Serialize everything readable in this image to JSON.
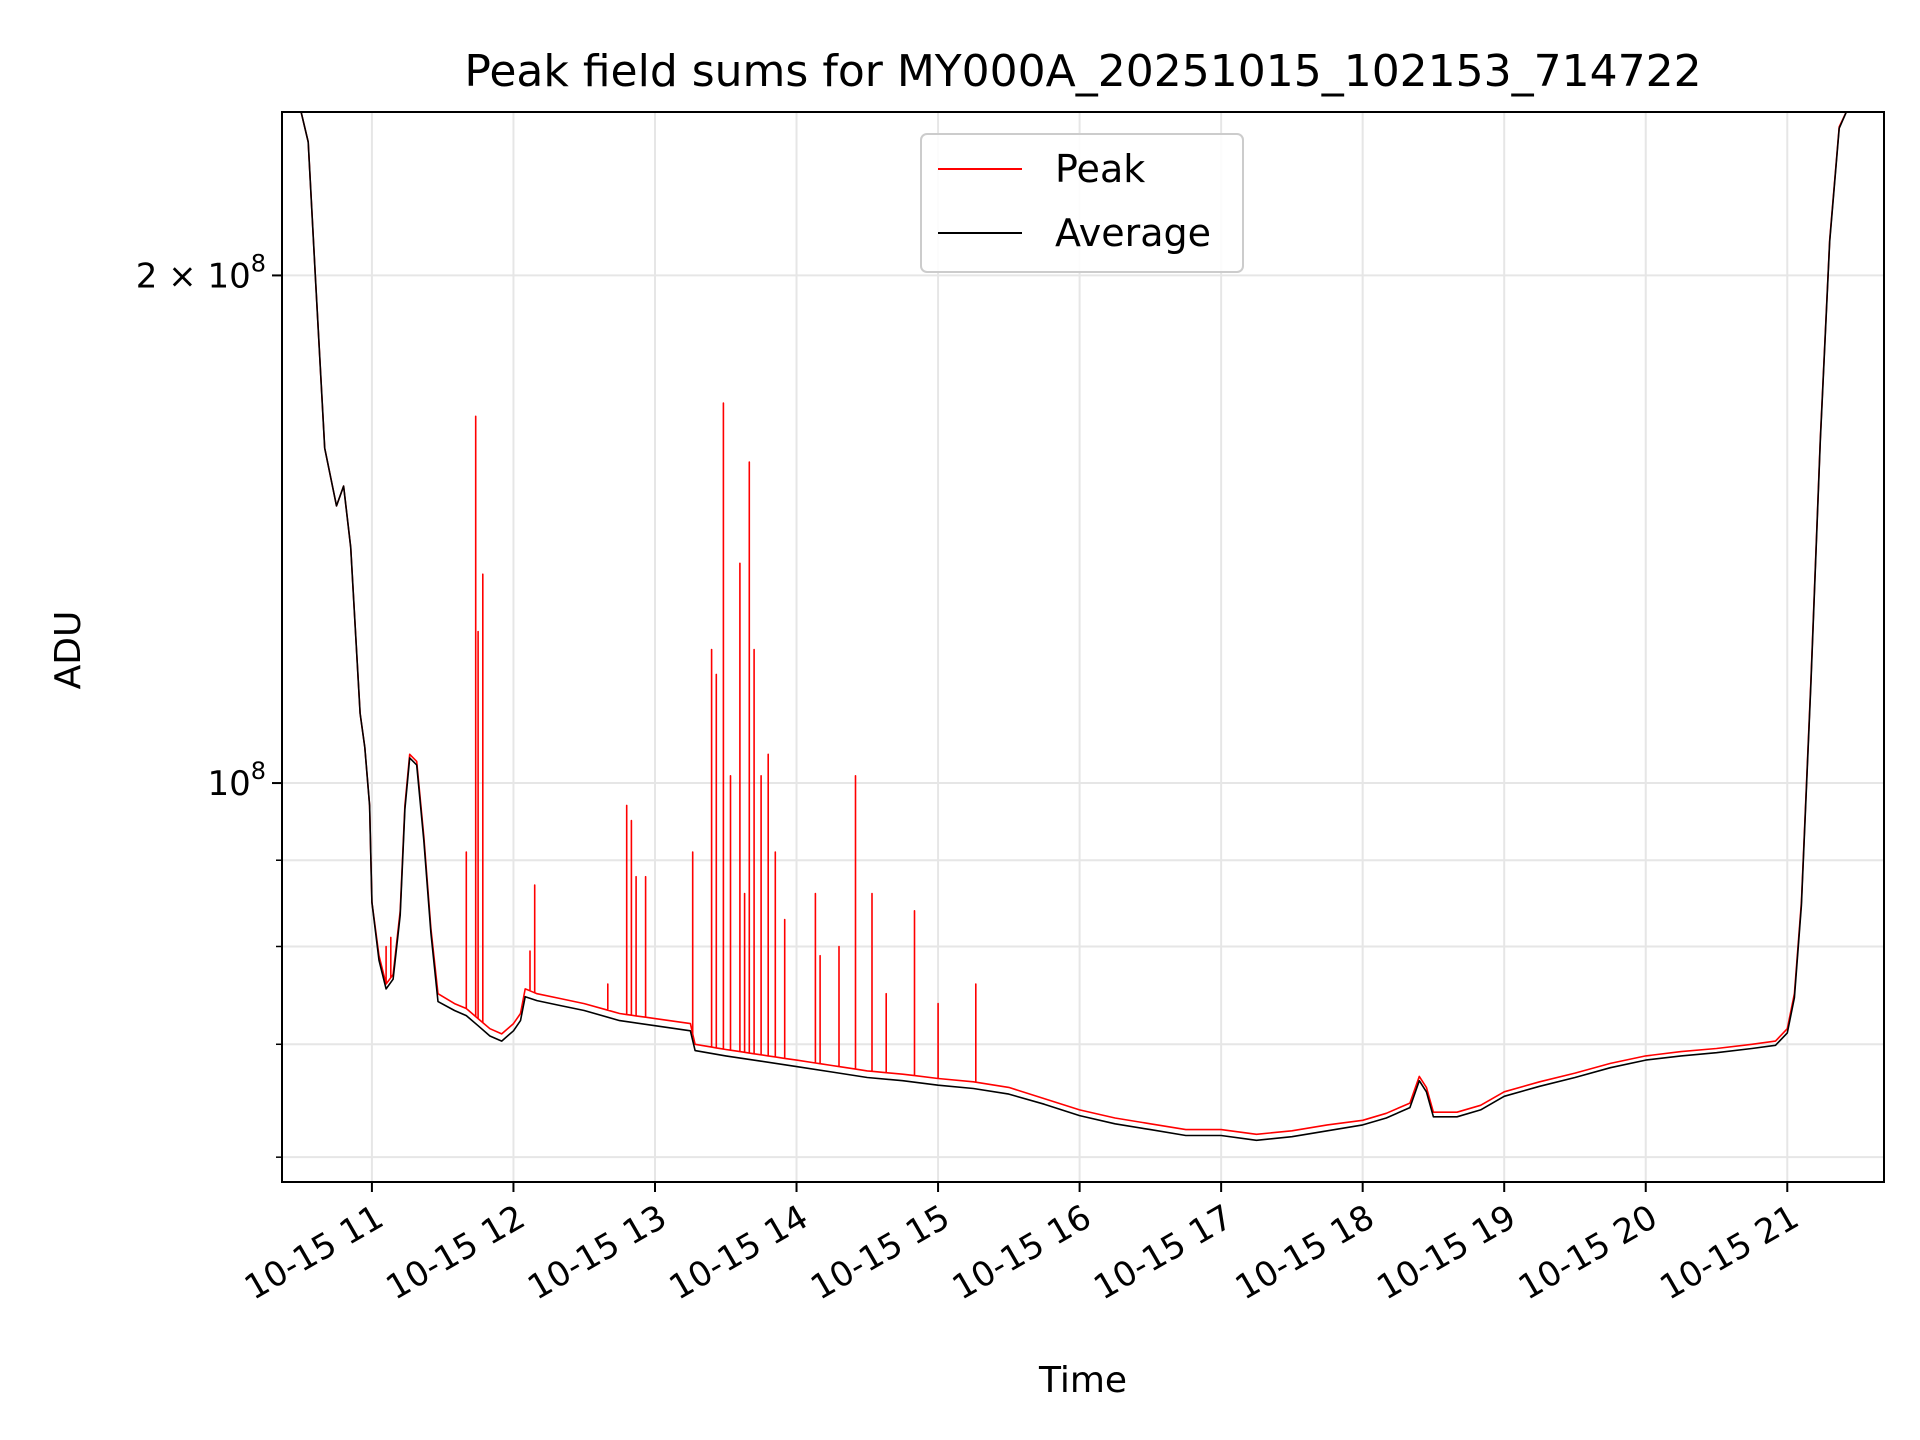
{
  "chart_data": {
    "type": "line",
    "title": "Peak field sums for MY000A_20251015_102153_714722",
    "xlabel": "Time",
    "ylabel": "ADU",
    "y_scale": "log",
    "xlim": [
      "2025-10-15 10:21:53",
      "2025-10-15 21:41:00"
    ],
    "ylim": [
      58000000,
      250000000
    ],
    "x_ticks": [
      {
        "time": "2025-10-15 11:00",
        "label": "10-15 11"
      },
      {
        "time": "2025-10-15 12:00",
        "label": "10-15 12"
      },
      {
        "time": "2025-10-15 13:00",
        "label": "10-15 13"
      },
      {
        "time": "2025-10-15 14:00",
        "label": "10-15 14"
      },
      {
        "time": "2025-10-15 15:00",
        "label": "10-15 15"
      },
      {
        "time": "2025-10-15 16:00",
        "label": "10-15 16"
      },
      {
        "time": "2025-10-15 17:00",
        "label": "10-15 17"
      },
      {
        "time": "2025-10-15 18:00",
        "label": "10-15 18"
      },
      {
        "time": "2025-10-15 19:00",
        "label": "10-15 19"
      },
      {
        "time": "2025-10-15 20:00",
        "label": "10-15 20"
      },
      {
        "time": "2025-10-15 21:00",
        "label": "10-15 21"
      }
    ],
    "y_major_ticks": [
      {
        "value": 100000000,
        "label_base": "10",
        "label_exp": "8"
      },
      {
        "value": 200000000,
        "label_base": "2 × 10",
        "label_exp": "8"
      }
    ],
    "y_minor_ticks": [
      60000000,
      70000000,
      80000000,
      90000000
    ],
    "grid": true,
    "legend_position": "upper center",
    "colors": {
      "peak": "#ff0000",
      "average": "#000000",
      "grid": "#e6e6e6"
    },
    "series": [
      {
        "name": "Peak",
        "color": "#ff0000",
        "points": [
          [
            "2025-10-15 10:21:53",
            250000000
          ],
          [
            "2025-10-15 10:30",
            250000000
          ],
          [
            "2025-10-15 10:33",
            240000000
          ],
          [
            "2025-10-15 10:36",
            200000000
          ],
          [
            "2025-10-15 10:40",
            158000000
          ],
          [
            "2025-10-15 10:45",
            146000000
          ],
          [
            "2025-10-15 10:48",
            150000000
          ],
          [
            "2025-10-15 10:51",
            138000000
          ],
          [
            "2025-10-15 10:55",
            110000000
          ],
          [
            "2025-10-15 10:57",
            105000000
          ],
          [
            "2025-10-15 10:59",
            97000000
          ],
          [
            "2025-10-15 11:00",
            85000000
          ],
          [
            "2025-10-15 11:03",
            79000000
          ],
          [
            "2025-10-15 11:06",
            76000000
          ],
          [
            "2025-10-15 11:09",
            77000000
          ],
          [
            "2025-10-15 11:12",
            84000000
          ],
          [
            "2025-10-15 11:14",
            97000000
          ],
          [
            "2025-10-15 11:16",
            104000000
          ],
          [
            "2025-10-15 11:19",
            103000000
          ],
          [
            "2025-10-15 11:22",
            93000000
          ],
          [
            "2025-10-15 11:25",
            82000000
          ],
          [
            "2025-10-15 11:28",
            75000000
          ],
          [
            "2025-10-15 11:35",
            74000000
          ],
          [
            "2025-10-15 11:40",
            73500000
          ],
          [
            "2025-10-15 11:45",
            72500000
          ],
          [
            "2025-10-15 11:50",
            71500000
          ],
          [
            "2025-10-15 11:55",
            71000000
          ],
          [
            "2025-10-15 12:00",
            72000000
          ],
          [
            "2025-10-15 12:03",
            73000000
          ],
          [
            "2025-10-15 12:05",
            75500000
          ],
          [
            "2025-10-15 12:10",
            75000000
          ],
          [
            "2025-10-15 12:20",
            74500000
          ],
          [
            "2025-10-15 12:30",
            74000000
          ],
          [
            "2025-10-15 12:45",
            73000000
          ],
          [
            "2025-10-15 13:00",
            72500000
          ],
          [
            "2025-10-15 13:15",
            72000000
          ],
          [
            "2025-10-15 13:17",
            70000000
          ],
          [
            "2025-10-15 13:30",
            69500000
          ],
          [
            "2025-10-15 13:45",
            69000000
          ],
          [
            "2025-10-15 14:00",
            68500000
          ],
          [
            "2025-10-15 14:15",
            68000000
          ],
          [
            "2025-10-15 14:30",
            67500000
          ],
          [
            "2025-10-15 14:45",
            67200000
          ],
          [
            "2025-10-15 15:00",
            66800000
          ],
          [
            "2025-10-15 15:15",
            66500000
          ],
          [
            "2025-10-15 15:30",
            66000000
          ],
          [
            "2025-10-15 15:45",
            65000000
          ],
          [
            "2025-10-15 16:00",
            64000000
          ],
          [
            "2025-10-15 16:15",
            63300000
          ],
          [
            "2025-10-15 16:30",
            62800000
          ],
          [
            "2025-10-15 16:45",
            62300000
          ],
          [
            "2025-10-15 17:00",
            62300000
          ],
          [
            "2025-10-15 17:15",
            61900000
          ],
          [
            "2025-10-15 17:30",
            62200000
          ],
          [
            "2025-10-15 17:45",
            62700000
          ],
          [
            "2025-10-15 18:00",
            63100000
          ],
          [
            "2025-10-15 18:10",
            63700000
          ],
          [
            "2025-10-15 18:20",
            64600000
          ],
          [
            "2025-10-15 18:24",
            67000000
          ],
          [
            "2025-10-15 18:27",
            66000000
          ],
          [
            "2025-10-15 18:30",
            63800000
          ],
          [
            "2025-10-15 18:40",
            63800000
          ],
          [
            "2025-10-15 18:50",
            64400000
          ],
          [
            "2025-10-15 19:00",
            65600000
          ],
          [
            "2025-10-15 19:15",
            66500000
          ],
          [
            "2025-10-15 19:30",
            67300000
          ],
          [
            "2025-10-15 19:45",
            68200000
          ],
          [
            "2025-10-15 20:00",
            68900000
          ],
          [
            "2025-10-15 20:15",
            69300000
          ],
          [
            "2025-10-15 20:30",
            69600000
          ],
          [
            "2025-10-15 20:45",
            70000000
          ],
          [
            "2025-10-15 20:55",
            70300000
          ],
          [
            "2025-10-15 21:00",
            71500000
          ],
          [
            "2025-10-15 21:03",
            75000000
          ],
          [
            "2025-10-15 21:06",
            85000000
          ],
          [
            "2025-10-15 21:10",
            115000000
          ],
          [
            "2025-10-15 21:14",
            160000000
          ],
          [
            "2025-10-15 21:18",
            210000000
          ],
          [
            "2025-10-15 21:22",
            245000000
          ],
          [
            "2025-10-15 21:25",
            250000000
          ],
          [
            "2025-10-15 21:41",
            250000000
          ]
        ],
        "spikes": [
          [
            "2025-10-15 11:06",
            80000000
          ],
          [
            "2025-10-15 11:08",
            81000000
          ],
          [
            "2025-10-15 11:40",
            91000000
          ],
          [
            "2025-10-15 11:44",
            165000000
          ],
          [
            "2025-10-15 11:45",
            123000000
          ],
          [
            "2025-10-15 11:47",
            133000000
          ],
          [
            "2025-10-15 12:07",
            79500000
          ],
          [
            "2025-10-15 12:09",
            87000000
          ],
          [
            "2025-10-15 12:40",
            76000000
          ],
          [
            "2025-10-15 12:48",
            97000000
          ],
          [
            "2025-10-15 12:50",
            95000000
          ],
          [
            "2025-10-15 12:52",
            88000000
          ],
          [
            "2025-10-15 12:56",
            88000000
          ],
          [
            "2025-10-15 13:16",
            91000000
          ],
          [
            "2025-10-15 13:24",
            120000000
          ],
          [
            "2025-10-15 13:26",
            116000000
          ],
          [
            "2025-10-15 13:29",
            168000000
          ],
          [
            "2025-10-15 13:32",
            101000000
          ],
          [
            "2025-10-15 13:36",
            135000000
          ],
          [
            "2025-10-15 13:38",
            86000000
          ],
          [
            "2025-10-15 13:40",
            155000000
          ],
          [
            "2025-10-15 13:42",
            120000000
          ],
          [
            "2025-10-15 13:45",
            101000000
          ],
          [
            "2025-10-15 13:48",
            104000000
          ],
          [
            "2025-10-15 13:51",
            91000000
          ],
          [
            "2025-10-15 13:55",
            83000000
          ],
          [
            "2025-10-15 14:08",
            86000000
          ],
          [
            "2025-10-15 14:10",
            79000000
          ],
          [
            "2025-10-15 14:18",
            80000000
          ],
          [
            "2025-10-15 14:25",
            101000000
          ],
          [
            "2025-10-15 14:32",
            86000000
          ],
          [
            "2025-10-15 14:38",
            75000000
          ],
          [
            "2025-10-15 14:50",
            84000000
          ],
          [
            "2025-10-15 15:00",
            74000000
          ],
          [
            "2025-10-15 15:16",
            76000000
          ]
        ]
      },
      {
        "name": "Average",
        "color": "#000000",
        "points": [
          [
            "2025-10-15 10:21:53",
            250000000
          ],
          [
            "2025-10-15 10:30",
            250000000
          ],
          [
            "2025-10-15 10:33",
            240000000
          ],
          [
            "2025-10-15 10:36",
            200000000
          ],
          [
            "2025-10-15 10:40",
            158000000
          ],
          [
            "2025-10-15 10:45",
            146000000
          ],
          [
            "2025-10-15 10:48",
            150000000
          ],
          [
            "2025-10-15 10:51",
            138000000
          ],
          [
            "2025-10-15 10:55",
            110000000
          ],
          [
            "2025-10-15 10:57",
            105000000
          ],
          [
            "2025-10-15 10:59",
            97000000
          ],
          [
            "2025-10-15 11:00",
            85000000
          ],
          [
            "2025-10-15 11:03",
            78500000
          ],
          [
            "2025-10-15 11:06",
            75500000
          ],
          [
            "2025-10-15 11:09",
            76500000
          ],
          [
            "2025-10-15 11:12",
            83500000
          ],
          [
            "2025-10-15 11:14",
            96500000
          ],
          [
            "2025-10-15 11:16",
            103500000
          ],
          [
            "2025-10-15 11:19",
            102500000
          ],
          [
            "2025-10-15 11:22",
            92500000
          ],
          [
            "2025-10-15 11:25",
            81500000
          ],
          [
            "2025-10-15 11:28",
            74200000
          ],
          [
            "2025-10-15 11:35",
            73300000
          ],
          [
            "2025-10-15 11:40",
            72800000
          ],
          [
            "2025-10-15 11:45",
            71800000
          ],
          [
            "2025-10-15 11:50",
            70800000
          ],
          [
            "2025-10-15 11:55",
            70300000
          ],
          [
            "2025-10-15 12:00",
            71300000
          ],
          [
            "2025-10-15 12:03",
            72300000
          ],
          [
            "2025-10-15 12:05",
            74700000
          ],
          [
            "2025-10-15 12:10",
            74300000
          ],
          [
            "2025-10-15 12:20",
            73800000
          ],
          [
            "2025-10-15 12:30",
            73300000
          ],
          [
            "2025-10-15 12:45",
            72300000
          ],
          [
            "2025-10-15 13:00",
            71800000
          ],
          [
            "2025-10-15 13:15",
            71300000
          ],
          [
            "2025-10-15 13:17",
            69400000
          ],
          [
            "2025-10-15 13:30",
            68900000
          ],
          [
            "2025-10-15 13:45",
            68400000
          ],
          [
            "2025-10-15 14:00",
            67900000
          ],
          [
            "2025-10-15 14:15",
            67400000
          ],
          [
            "2025-10-15 14:30",
            66900000
          ],
          [
            "2025-10-15 14:45",
            66600000
          ],
          [
            "2025-10-15 15:00",
            66200000
          ],
          [
            "2025-10-15 15:15",
            65900000
          ],
          [
            "2025-10-15 15:30",
            65400000
          ],
          [
            "2025-10-15 15:45",
            64500000
          ],
          [
            "2025-10-15 16:00",
            63500000
          ],
          [
            "2025-10-15 16:15",
            62800000
          ],
          [
            "2025-10-15 16:30",
            62300000
          ],
          [
            "2025-10-15 16:45",
            61800000
          ],
          [
            "2025-10-15 17:00",
            61800000
          ],
          [
            "2025-10-15 17:15",
            61400000
          ],
          [
            "2025-10-15 17:30",
            61700000
          ],
          [
            "2025-10-15 17:45",
            62200000
          ],
          [
            "2025-10-15 18:00",
            62700000
          ],
          [
            "2025-10-15 18:10",
            63300000
          ],
          [
            "2025-10-15 18:20",
            64200000
          ],
          [
            "2025-10-15 18:24",
            66600000
          ],
          [
            "2025-10-15 18:27",
            65600000
          ],
          [
            "2025-10-15 18:30",
            63400000
          ],
          [
            "2025-10-15 18:40",
            63400000
          ],
          [
            "2025-10-15 18:50",
            64000000
          ],
          [
            "2025-10-15 19:00",
            65200000
          ],
          [
            "2025-10-15 19:15",
            66100000
          ],
          [
            "2025-10-15 19:30",
            66900000
          ],
          [
            "2025-10-15 19:45",
            67800000
          ],
          [
            "2025-10-15 20:00",
            68500000
          ],
          [
            "2025-10-15 20:15",
            68900000
          ],
          [
            "2025-10-15 20:30",
            69200000
          ],
          [
            "2025-10-15 20:45",
            69600000
          ],
          [
            "2025-10-15 20:55",
            69900000
          ],
          [
            "2025-10-15 21:00",
            71100000
          ],
          [
            "2025-10-15 21:03",
            74600000
          ],
          [
            "2025-10-15 21:06",
            84600000
          ],
          [
            "2025-10-15 21:10",
            114500000
          ],
          [
            "2025-10-15 21:14",
            159500000
          ],
          [
            "2025-10-15 21:18",
            209500000
          ],
          [
            "2025-10-15 21:22",
            244500000
          ],
          [
            "2025-10-15 21:25",
            250000000
          ],
          [
            "2025-10-15 21:41",
            250000000
          ]
        ]
      }
    ]
  }
}
